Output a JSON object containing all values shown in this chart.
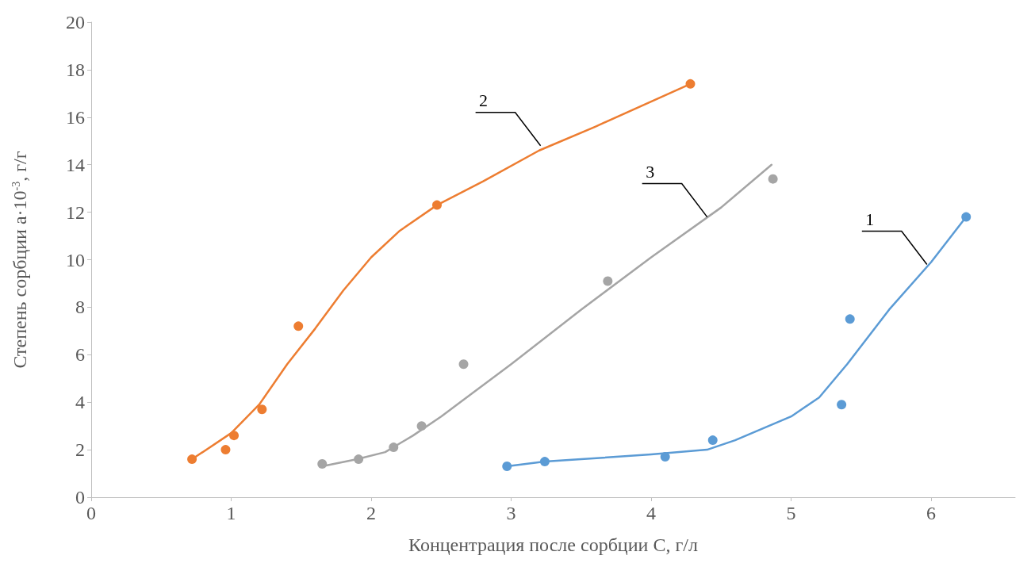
{
  "chart_data": {
    "type": "scatter",
    "xlabel": "Концентрация после сорбции С, г/л",
    "ylabel": "Степень сорбции a·10$^{-3}$, г/г",
    "xlim": [
      0,
      6.6
    ],
    "xticks": [
      0,
      1,
      2,
      3,
      4,
      5,
      6
    ],
    "ylim": [
      0,
      20
    ],
    "yticks": [
      0,
      2,
      4,
      6,
      8,
      10,
      12,
      14,
      16,
      18,
      20
    ],
    "grid": false,
    "series": [
      {
        "marker": "circle",
        "color": "#ed7d31",
        "x": [
          0.72,
          0.96,
          1.02,
          1.22,
          1.48,
          2.47,
          4.28
        ],
        "values": [
          1.6,
          2.0,
          2.6,
          3.7,
          7.2,
          12.3,
          17.4
        ]
      },
      {
        "type": "line",
        "marker": "none",
        "color": "#ed7d31",
        "x": [
          0.72,
          1.0,
          1.2,
          1.4,
          1.6,
          1.8,
          2.0,
          2.2,
          2.47,
          2.8,
          3.2,
          3.6,
          4.28
        ],
        "values": [
          1.6,
          2.7,
          3.9,
          5.6,
          7.1,
          8.7,
          10.1,
          11.2,
          12.3,
          13.3,
          14.6,
          15.6,
          17.4
        ]
      },
      {
        "marker": "circle",
        "color": "#a5a5a5",
        "x": [
          1.65,
          1.91,
          2.16,
          2.36,
          2.66,
          3.69,
          4.87
        ],
        "values": [
          1.4,
          1.6,
          2.1,
          3.0,
          5.6,
          9.1,
          13.4
        ]
      },
      {
        "type": "line",
        "marker": "none",
        "color": "#a5a5a5",
        "x": [
          1.65,
          1.9,
          2.1,
          2.3,
          2.5,
          3.0,
          3.5,
          4.0,
          4.5,
          4.86
        ],
        "values": [
          1.3,
          1.6,
          1.9,
          2.6,
          3.4,
          5.6,
          7.9,
          10.1,
          12.2,
          14.0
        ]
      },
      {
        "marker": "circle",
        "color": "#5b9bd5",
        "x": [
          2.97,
          3.24,
          4.1,
          4.44,
          5.36,
          5.42,
          6.25
        ],
        "values": [
          1.3,
          1.5,
          1.7,
          2.4,
          3.9,
          7.5,
          11.8
        ]
      },
      {
        "type": "line",
        "marker": "none",
        "color": "#5b9bd5",
        "x": [
          2.97,
          3.24,
          3.5,
          4.0,
          4.4,
          4.6,
          5.0,
          5.2,
          5.4,
          5.7,
          6.0,
          6.25
        ],
        "values": [
          1.3,
          1.5,
          1.6,
          1.8,
          2.0,
          2.4,
          3.4,
          4.2,
          5.6,
          7.9,
          9.9,
          11.8
        ]
      }
    ],
    "annotations": [
      {
        "text": "2",
        "x": 3.21,
        "y": 14.8
      },
      {
        "text": "3",
        "x": 4.4,
        "y": 11.8
      },
      {
        "text": "1",
        "x": 5.97,
        "y": 9.8
      }
    ]
  }
}
